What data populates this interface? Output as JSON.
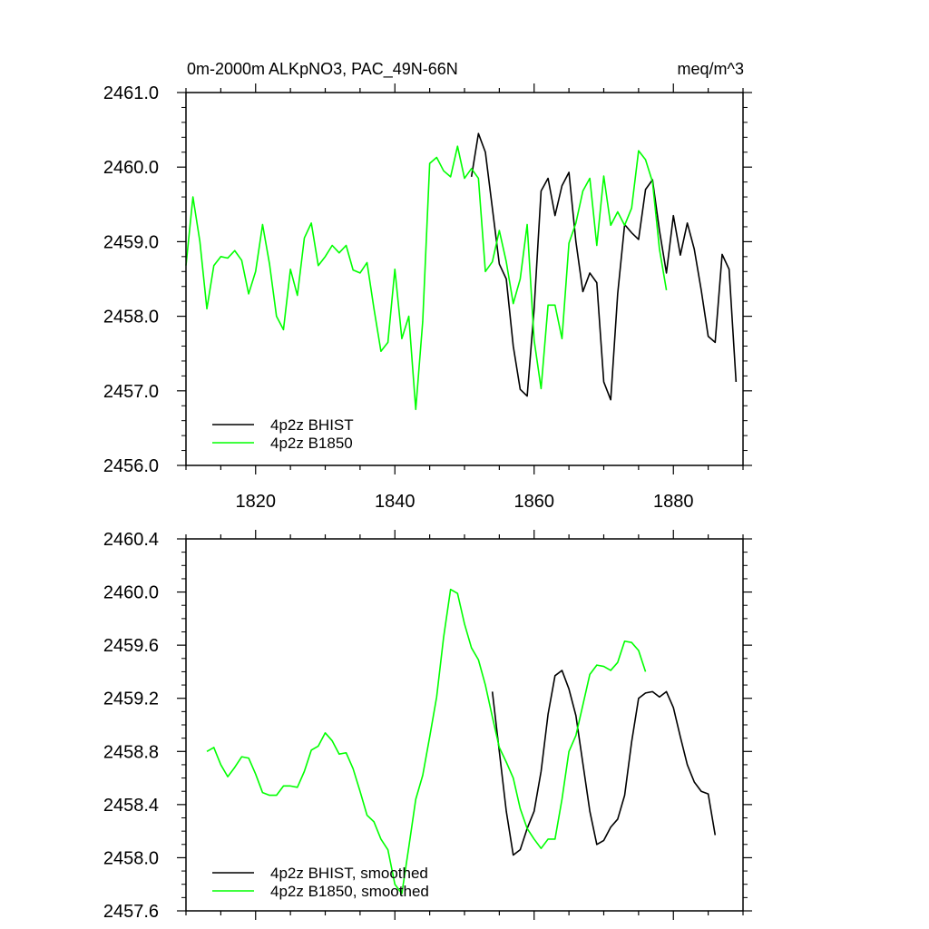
{
  "chart_data": [
    {
      "type": "line",
      "title": "0m-2000m ALKpNO3, PAC_49N-66N",
      "units": "meq/m^3",
      "xlim": [
        1810,
        1890
      ],
      "ylim": [
        2456.0,
        2461.0
      ],
      "xticks": [
        1820,
        1840,
        1860,
        1880
      ],
      "xtick_labels": [
        "1820",
        "1840",
        "1860",
        "1880"
      ],
      "yticks": [
        2456.0,
        2457.0,
        2458.0,
        2459.0,
        2460.0,
        2461.0
      ],
      "ytick_labels": [
        "2456.0",
        "2457.0",
        "2458.0",
        "2459.0",
        "2460.0",
        "2461.0"
      ],
      "legend_position": "bottom-left",
      "series": [
        {
          "name": "4p2z BHIST",
          "color": "#000000",
          "x": [
            1851,
            1852,
            1853,
            1854,
            1855,
            1856,
            1857,
            1858,
            1859,
            1860,
            1861,
            1862,
            1863,
            1864,
            1865,
            1866,
            1867,
            1868,
            1869,
            1870,
            1871,
            1872,
            1873,
            1874,
            1875,
            1876,
            1877,
            1878,
            1879,
            1880,
            1881,
            1882,
            1883,
            1884,
            1885,
            1886,
            1887,
            1888,
            1889
          ],
          "y": [
            2459.87,
            2460.45,
            2460.2,
            2459.45,
            2458.7,
            2458.5,
            2457.6,
            2457.02,
            2456.93,
            2458.1,
            2459.68,
            2459.85,
            2459.35,
            2459.75,
            2459.93,
            2459.0,
            2458.33,
            2458.58,
            2458.45,
            2457.12,
            2456.88,
            2458.3,
            2459.23,
            2459.12,
            2459.03,
            2459.7,
            2459.83,
            2459.15,
            2458.58,
            2459.35,
            2458.82,
            2459.25,
            2458.9,
            2458.35,
            2457.73,
            2457.65,
            2458.83,
            2458.63,
            2457.12
          ]
        },
        {
          "name": "4p2z B1850",
          "color": "#00ff00",
          "x": [
            1810,
            1811,
            1812,
            1813,
            1814,
            1815,
            1816,
            1817,
            1818,
            1819,
            1820,
            1821,
            1822,
            1823,
            1824,
            1825,
            1826,
            1827,
            1828,
            1829,
            1830,
            1831,
            1832,
            1833,
            1834,
            1835,
            1836,
            1837,
            1838,
            1839,
            1840,
            1841,
            1842,
            1843,
            1844,
            1845,
            1846,
            1847,
            1848,
            1849,
            1850,
            1851,
            1852,
            1853,
            1854,
            1855,
            1856,
            1857,
            1858,
            1859,
            1860,
            1861,
            1862,
            1863,
            1864,
            1865,
            1866,
            1867,
            1868,
            1869,
            1870,
            1871,
            1872,
            1873,
            1874,
            1875,
            1876,
            1877,
            1878,
            1879
          ],
          "y": [
            2458.68,
            2459.6,
            2459.0,
            2458.1,
            2458.68,
            2458.8,
            2458.78,
            2458.88,
            2458.75,
            2458.3,
            2458.6,
            2459.23,
            2458.7,
            2458.0,
            2457.82,
            2458.63,
            2458.28,
            2459.05,
            2459.25,
            2458.68,
            2458.8,
            2458.95,
            2458.85,
            2458.95,
            2458.62,
            2458.58,
            2458.72,
            2458.1,
            2457.53,
            2457.65,
            2458.63,
            2457.7,
            2458.0,
            2456.75,
            2457.93,
            2460.05,
            2460.13,
            2459.95,
            2459.87,
            2460.28,
            2459.85,
            2459.98,
            2459.85,
            2458.6,
            2458.73,
            2459.15,
            2458.73,
            2458.17,
            2458.5,
            2459.23,
            2457.68,
            2457.03,
            2458.15,
            2458.15,
            2457.7,
            2458.98,
            2459.25,
            2459.68,
            2459.85,
            2458.95,
            2459.88,
            2459.22,
            2459.4,
            2459.22,
            2459.45,
            2460.22,
            2460.1,
            2459.8,
            2458.9,
            2458.35
          ]
        }
      ]
    },
    {
      "type": "line",
      "xlim": [
        1810,
        1890
      ],
      "ylim": [
        2457.6,
        2460.4
      ],
      "xticks": [
        1820,
        1840,
        1860,
        1880
      ],
      "yticks": [
        2457.6,
        2458.0,
        2458.4,
        2458.8,
        2459.2,
        2459.6,
        2460.0,
        2460.4
      ],
      "ytick_labels": [
        "2457.6",
        "2458.0",
        "2458.4",
        "2458.8",
        "2459.2",
        "2459.6",
        "2460.0",
        "2460.4"
      ],
      "legend_position": "bottom-left",
      "series": [
        {
          "name": "4p2z BHIST, smoothed",
          "color": "#000000",
          "x": [
            1854,
            1855,
            1856,
            1857,
            1858,
            1859,
            1860,
            1861,
            1862,
            1863,
            1864,
            1865,
            1866,
            1867,
            1868,
            1869,
            1870,
            1871,
            1872,
            1873,
            1874,
            1875,
            1876,
            1877,
            1878,
            1879,
            1880,
            1881,
            1882,
            1883,
            1884,
            1885,
            1886
          ],
          "y": [
            2459.25,
            2458.8,
            2458.35,
            2458.02,
            2458.06,
            2458.22,
            2458.35,
            2458.65,
            2459.08,
            2459.37,
            2459.41,
            2459.27,
            2459.07,
            2458.71,
            2458.35,
            2458.1,
            2458.13,
            2458.23,
            2458.29,
            2458.47,
            2458.87,
            2459.2,
            2459.24,
            2459.25,
            2459.21,
            2459.25,
            2459.13,
            2458.91,
            2458.7,
            2458.57,
            2458.5,
            2458.48,
            2458.17
          ]
        },
        {
          "name": "4p2z B1850, smoothed",
          "color": "#00ff00",
          "x": [
            1813,
            1814,
            1815,
            1816,
            1817,
            1818,
            1819,
            1820,
            1821,
            1822,
            1823,
            1824,
            1825,
            1826,
            1827,
            1828,
            1829,
            1830,
            1831,
            1832,
            1833,
            1834,
            1835,
            1836,
            1837,
            1838,
            1839,
            1840,
            1841,
            1842,
            1843,
            1844,
            1845,
            1846,
            1847,
            1848,
            1849,
            1850,
            1851,
            1852,
            1853,
            1854,
            1855,
            1856,
            1857,
            1858,
            1859,
            1860,
            1861,
            1862,
            1863,
            1864,
            1865,
            1866,
            1867,
            1868,
            1869,
            1870,
            1871,
            1872,
            1873,
            1874,
            1875,
            1876
          ],
          "y": [
            2458.8,
            2458.83,
            2458.7,
            2458.61,
            2458.68,
            2458.76,
            2458.75,
            2458.63,
            2458.49,
            2458.47,
            2458.47,
            2458.54,
            2458.54,
            2458.53,
            2458.65,
            2458.81,
            2458.84,
            2458.94,
            2458.88,
            2458.78,
            2458.79,
            2458.67,
            2458.5,
            2458.32,
            2458.27,
            2458.14,
            2458.06,
            2457.8,
            2457.73,
            2458.08,
            2458.44,
            2458.62,
            2458.91,
            2459.21,
            2459.66,
            2460.02,
            2459.99,
            2459.76,
            2459.58,
            2459.49,
            2459.3,
            2459.06,
            2458.83,
            2458.72,
            2458.6,
            2458.37,
            2458.22,
            2458.14,
            2458.07,
            2458.14,
            2458.14,
            2458.44,
            2458.8,
            2458.92,
            2459.15,
            2459.38,
            2459.45,
            2459.44,
            2459.41,
            2459.47,
            2459.63,
            2459.62,
            2459.56,
            2459.4
          ]
        }
      ]
    }
  ]
}
